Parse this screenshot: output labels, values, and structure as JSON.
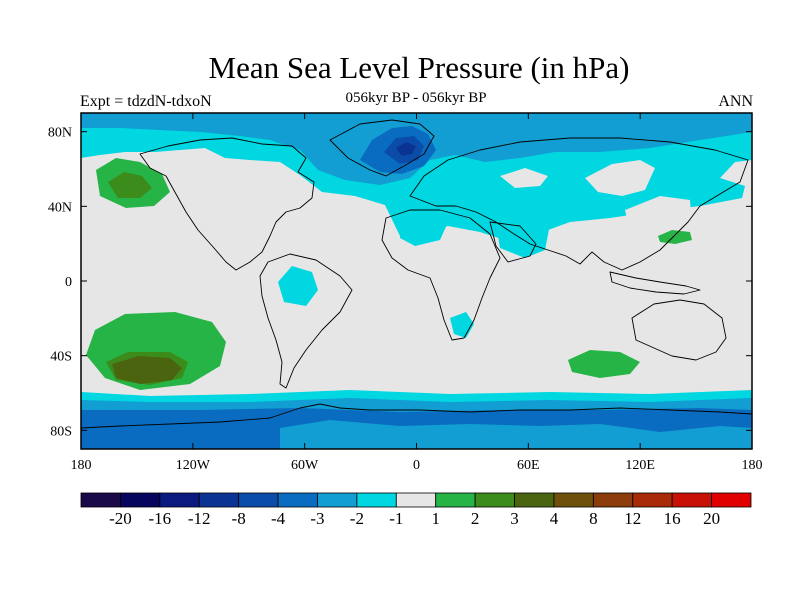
{
  "title": "Mean Sea Level Pressure (in hPa)",
  "subtitle": "056kyr BP - 056kyr BP",
  "left_label": "Expt = tdzdN-tdxoN",
  "right_label": "ANN",
  "axes": {
    "x_ticks": [
      {
        "value": -180,
        "label": "180"
      },
      {
        "value": -120,
        "label": "120W"
      },
      {
        "value": -60,
        "label": "60W"
      },
      {
        "value": 0,
        "label": "0"
      },
      {
        "value": 60,
        "label": "60E"
      },
      {
        "value": 120,
        "label": "120E"
      },
      {
        "value": 180,
        "label": "180"
      }
    ],
    "y_ticks": [
      {
        "value": 80,
        "label": "80N"
      },
      {
        "value": 40,
        "label": "40N"
      },
      {
        "value": 0,
        "label": "0"
      },
      {
        "value": -40,
        "label": "40S"
      },
      {
        "value": -80,
        "label": "80S"
      }
    ],
    "lon_range": [
      -180,
      180
    ],
    "lat_range": [
      -90,
      90
    ]
  },
  "colorbar": {
    "colors": [
      "#1a0a4a",
      "#06065e",
      "#0b1a7e",
      "#0a3394",
      "#0a4ca8",
      "#0a6cc0",
      "#129ed2",
      "#00d7e0",
      "#e6e6e6",
      "#26b446",
      "#3c8c1c",
      "#4b6410",
      "#6e500c",
      "#8c3c0a",
      "#a82a08",
      "#c81006",
      "#e00000"
    ],
    "labels": [
      "-20",
      "-16",
      "-12",
      "-8",
      "-4",
      "-3",
      "-2",
      "-1",
      "1",
      "2",
      "3",
      "4",
      "8",
      "12",
      "16",
      "20"
    ]
  },
  "colors": {
    "background": "#e6e6e6",
    "coastline": "#000000"
  }
}
